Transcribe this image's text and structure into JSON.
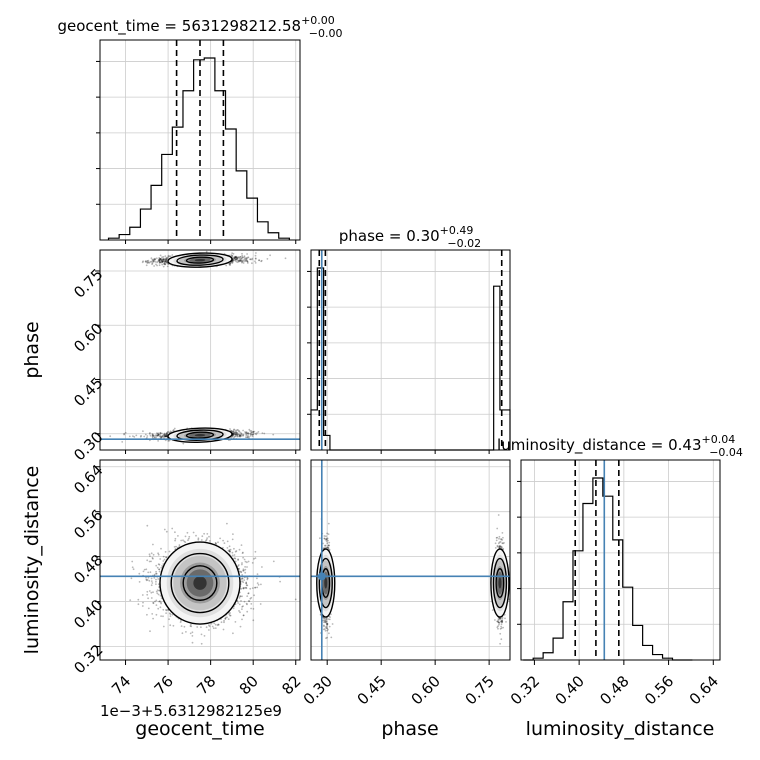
{
  "chart_data": {
    "type": "corner",
    "truth_color": "#4682b4",
    "parameters": [
      {
        "name": "geocent_time",
        "axis_label": "geocent_time",
        "offset_label": "1e−3+5.6312982125e9"
      },
      {
        "name": "phase",
        "axis_label": "phase"
      },
      {
        "name": "luminosity_distance",
        "axis_label": "luminosity_distance"
      }
    ],
    "titles": [
      {
        "prefix": "geocent_time = 5631298212.58",
        "plus": "+0.00",
        "minus": "−0.00"
      },
      {
        "prefix": "phase = 0.30",
        "plus": "+0.49",
        "minus": "−0.02"
      },
      {
        "prefix": "luminosity_distance = 0.43",
        "plus": "+0.04",
        "minus": "−0.04"
      }
    ],
    "ranges": {
      "geocent_time": [
        72.8,
        82.2
      ],
      "phase": [
        0.255,
        0.808
      ],
      "luminosity_distance": [
        0.296,
        0.652
      ]
    },
    "ticks": {
      "geocent_time": {
        "values": [
          74,
          76,
          78,
          80,
          82
        ],
        "labels": [
          "74",
          "76",
          "78",
          "80",
          "82"
        ]
      },
      "phase": {
        "values": [
          0.3,
          0.45,
          0.6,
          0.75
        ],
        "labels": [
          "0.30",
          "0.45",
          "0.60",
          "0.75"
        ]
      },
      "luminosity_distance": {
        "values": [
          0.32,
          0.4,
          0.48,
          0.56,
          0.64
        ],
        "labels": [
          "0.32",
          "0.40",
          "0.48",
          "0.56",
          "0.64"
        ]
      }
    },
    "truths": {
      "phase": 0.285,
      "luminosity_distance": 0.445
    },
    "quantiles": {
      "geocent_time": [
        76.4,
        77.5,
        78.6
      ],
      "phase": [
        0.278,
        0.295,
        0.785
      ],
      "luminosity_distance": [
        0.393,
        0.43,
        0.471
      ]
    },
    "histograms": {
      "geocent_time": {
        "edges": [
          73.2,
          73.7,
          74.2,
          74.7,
          75.2,
          75.7,
          76.2,
          76.7,
          77.2,
          77.7,
          78.2,
          78.7,
          79.2,
          79.7,
          80.2,
          80.7,
          81.2,
          81.7
        ],
        "counts": [
          0.01,
          0.03,
          0.07,
          0.17,
          0.3,
          0.47,
          0.62,
          0.82,
          0.99,
          1.0,
          0.82,
          0.61,
          0.38,
          0.23,
          0.1,
          0.04,
          0.01
        ]
      },
      "phase": {
        "edges": [
          0.255,
          0.2726,
          0.29,
          0.3076,
          0.7626,
          0.78,
          0.7976,
          0.808
        ],
        "counts": [
          0.22,
          1.0,
          0.08,
          0.0,
          0.9,
          0.22,
          0.22
        ]
      },
      "luminosity_distance": {
        "edges": [
          0.3,
          0.3178,
          0.3356,
          0.3534,
          0.3712,
          0.389,
          0.4068,
          0.4246,
          0.4424,
          0.4602,
          0.478,
          0.4958,
          0.5136,
          0.5314,
          0.5492,
          0.567,
          0.5848,
          0.6026
        ],
        "counts": [
          0.0,
          0.01,
          0.04,
          0.12,
          0.32,
          0.6,
          0.86,
          1.0,
          0.9,
          0.66,
          0.4,
          0.19,
          0.08,
          0.03,
          0.01,
          0.0,
          0.0
        ]
      }
    },
    "posterior_centers": {
      "geocent_time": 77.5,
      "phase_modes": [
        0.296,
        0.78
      ],
      "phase_mode_weights": [
        0.5,
        0.5
      ],
      "luminosity_distance": 0.433
    }
  }
}
